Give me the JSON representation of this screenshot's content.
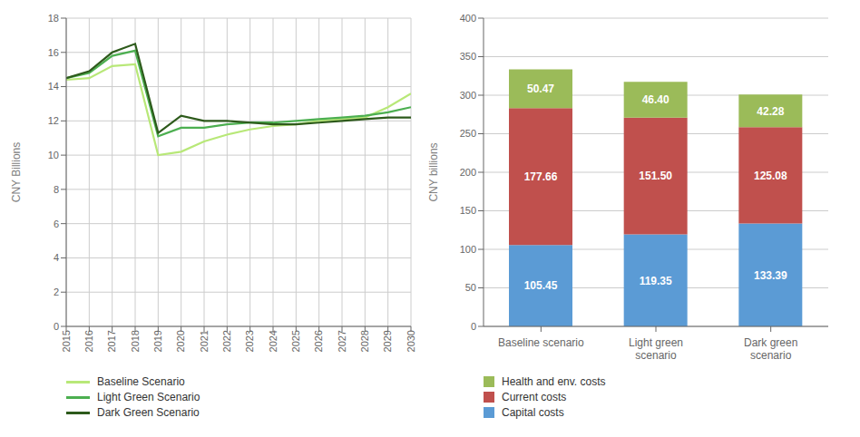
{
  "chart_data": [
    {
      "type": "line",
      "x": [
        2015,
        2016,
        2017,
        2018,
        2019,
        2020,
        2021,
        2022,
        2023,
        2024,
        2025,
        2026,
        2027,
        2028,
        2029,
        2030
      ],
      "xlim": [
        2015,
        2030
      ],
      "xticks": [
        2015,
        2016,
        2017,
        2018,
        2019,
        2020,
        2021,
        2022,
        2023,
        2024,
        2025,
        2026,
        2027,
        2028,
        2029,
        2030
      ],
      "series": [
        {
          "name": "Baseline Scenario",
          "color": "#b8e878",
          "values": [
            14.4,
            14.5,
            15.2,
            15.3,
            10.0,
            10.2,
            10.8,
            11.2,
            11.5,
            11.7,
            11.8,
            12.0,
            12.1,
            12.2,
            12.8,
            13.6
          ]
        },
        {
          "name": "Light Green Scenario",
          "color": "#4caf50",
          "values": [
            14.5,
            14.8,
            15.8,
            16.1,
            11.1,
            11.6,
            11.6,
            11.8,
            11.9,
            11.9,
            12.0,
            12.1,
            12.2,
            12.3,
            12.5,
            12.8
          ]
        },
        {
          "name": "Dark Green Scenario",
          "color": "#2d5a1b",
          "values": [
            14.5,
            14.9,
            16.0,
            16.5,
            11.3,
            12.3,
            12.0,
            12.0,
            11.9,
            11.8,
            11.8,
            11.9,
            12.0,
            12.1,
            12.2,
            12.2
          ]
        }
      ],
      "ylim": [
        0,
        18
      ],
      "yticks": [
        0,
        2,
        4,
        6,
        8,
        10,
        12,
        14,
        16,
        18
      ],
      "ylabel": "CNY Billions",
      "grid": true,
      "legend": "bottom"
    },
    {
      "type": "bar",
      "stacked": true,
      "categories": [
        "Baseline scenario",
        "Light green\nscenario",
        "Dark green\nscenario"
      ],
      "series": [
        {
          "name": "Capital costs",
          "color": "#5b9bd5",
          "values": [
            105.45,
            119.35,
            133.39
          ],
          "value_labels": [
            "105.45",
            "119.35",
            "133.39"
          ]
        },
        {
          "name": "Current costs",
          "color": "#c0504d",
          "values": [
            177.66,
            151.5,
            125.08
          ],
          "value_labels": [
            "177.66",
            "151.50",
            "125.08"
          ]
        },
        {
          "name": "Health and env. costs",
          "color": "#9bbb59",
          "values": [
            50.47,
            46.4,
            42.28
          ],
          "value_labels": [
            "50.47",
            "46.40",
            "42.28"
          ]
        }
      ],
      "ylim": [
        0,
        400
      ],
      "yticks": [
        0,
        50,
        100,
        150,
        200,
        250,
        300,
        350,
        400
      ],
      "ylabel": "CNY billions",
      "grid": "y",
      "data_labels": true,
      "legend": "bottom"
    }
  ]
}
